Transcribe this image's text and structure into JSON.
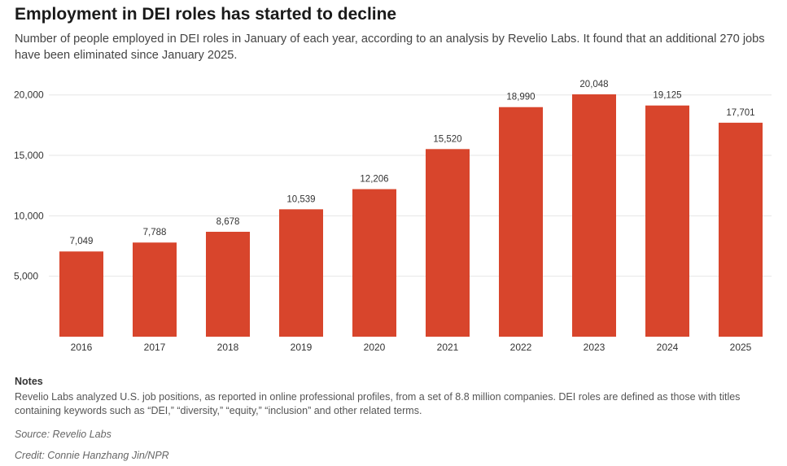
{
  "title": "Employment in DEI roles has started to decline",
  "subtitle": "Number of people employed in DEI roles in January of each year, according to an analysis by Revelio Labs. It found that an additional 270 jobs have been eliminated since January 2025.",
  "notes": {
    "heading": "Notes",
    "text": "Revelio Labs analyzed U.S. job positions, as reported in online professional profiles, from a set of 8.8 million companies. DEI roles are defined as those with titles containing keywords such as “DEI,” “diversity,” “equity,” “inclusion” and other related terms."
  },
  "source": "Source: Revelio Labs",
  "credit": "Credit: Connie Hanzhang Jin/NPR",
  "colors": {
    "bar": "#d8452c",
    "gridline": "#e6e6e6",
    "axis_text": "#333333",
    "label_text": "#333333"
  },
  "chart_data": {
    "type": "bar",
    "categories": [
      "2016",
      "2017",
      "2018",
      "2019",
      "2020",
      "2021",
      "2022",
      "2023",
      "2024",
      "2025"
    ],
    "values": [
      7049,
      7788,
      8678,
      10539,
      12206,
      15520,
      18990,
      20048,
      19125,
      17701
    ],
    "value_labels": [
      "7,049",
      "7,788",
      "8,678",
      "10,539",
      "12,206",
      "15,520",
      "18,990",
      "20,048",
      "19,125",
      "17,701"
    ],
    "yticks": [
      5000,
      10000,
      15000,
      20000
    ],
    "ytick_labels": [
      "5,000",
      "10,000",
      "15,000",
      "20,000"
    ],
    "ylim": [
      0,
      20048
    ],
    "grid": true,
    "legend": false
  }
}
